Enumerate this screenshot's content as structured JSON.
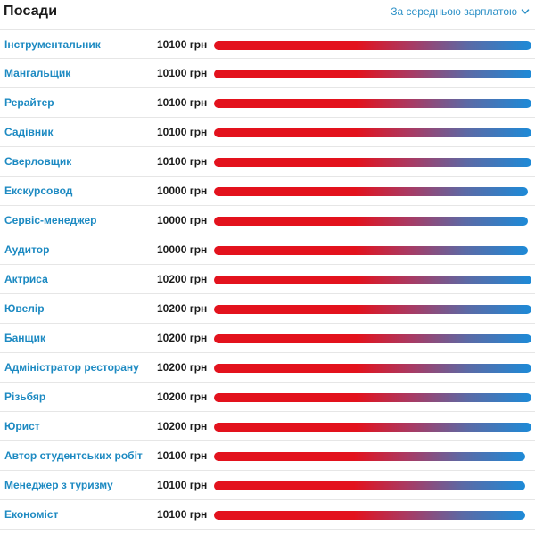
{
  "header": {
    "title": "Посади",
    "sort_label": "За середньою зарплатою",
    "sort_icon": "chevron-down-icon",
    "accent_color": "#2a8fc6"
  },
  "colors": {
    "bar_start": "#e3121d",
    "bar_end": "#1d8ad7",
    "job_link": "#1d8ac2"
  },
  "rows": [
    {
      "job": "Інструментальник",
      "salary": "10100 грн",
      "fill": 1.0
    },
    {
      "job": "Мангальщик",
      "salary": "10100 грн",
      "fill": 1.0
    },
    {
      "job": "Рерайтер",
      "salary": "10100 грн",
      "fill": 1.0
    },
    {
      "job": "Садівник",
      "salary": "10100 грн",
      "fill": 1.0
    },
    {
      "job": "Сверловщик",
      "salary": "10100 грн",
      "fill": 1.0
    },
    {
      "job": "Екскурсовод",
      "salary": "10000 грн",
      "fill": 0.99
    },
    {
      "job": "Сервіс-менеджер",
      "salary": "10000 грн",
      "fill": 0.99
    },
    {
      "job": "Аудитор",
      "salary": "10000 грн",
      "fill": 0.99
    },
    {
      "job": "Актриса",
      "salary": "10200 грн",
      "fill": 1.0
    },
    {
      "job": "Ювелір",
      "salary": "10200 грн",
      "fill": 1.0
    },
    {
      "job": "Банщик",
      "salary": "10200 грн",
      "fill": 1.0
    },
    {
      "job": "Адміністратор ресторану",
      "salary": "10200 грн",
      "fill": 1.0
    },
    {
      "job": "Різьбяр",
      "salary": "10200 грн",
      "fill": 1.0
    },
    {
      "job": "Юрист",
      "salary": "10200 грн",
      "fill": 1.0
    },
    {
      "job": "Автор студентських робіт",
      "salary": "10100 грн",
      "fill": 0.98
    },
    {
      "job": "Менеджер з туризму",
      "salary": "10100 грн",
      "fill": 0.98
    },
    {
      "job": "Економіст",
      "salary": "10100 грн",
      "fill": 0.98
    }
  ]
}
